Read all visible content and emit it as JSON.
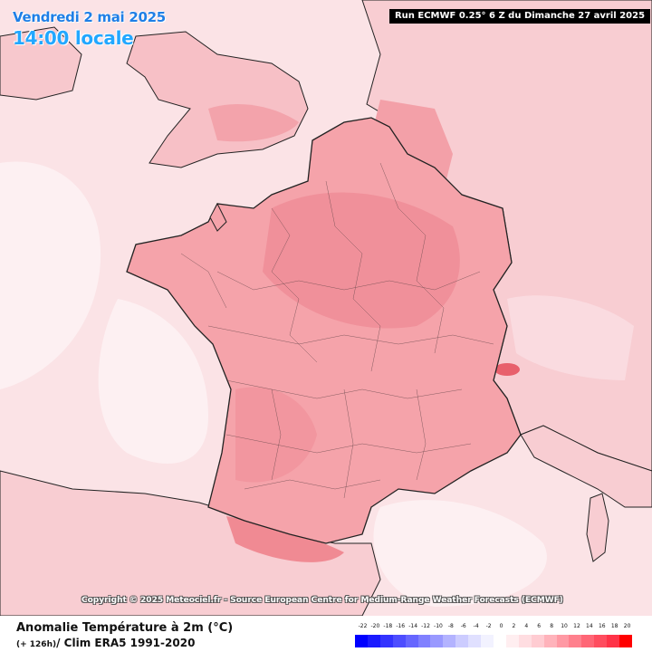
{
  "header": {
    "date": "Vendredi 2 mai 2025",
    "time": "14:00 locale",
    "run": "Run ECMWF 0.25° 6 Z du Dimanche 27 avril 2025"
  },
  "copyright": "Copyright © 2025 Meteociel.fr - Source European Centre for Medium-Range Weather Forecasts (ECMWF)",
  "footer": {
    "title": "Anomalie Température à 2m (°C)",
    "lead": "(+ 126h)",
    "clim": "/ Clim ERA5 1991-2020"
  },
  "legend": {
    "ticks": [
      "-22",
      "-20",
      "-18",
      "-16",
      "-14",
      "-12",
      "-10",
      "-8",
      "-6",
      "-4",
      "-2",
      "0",
      "2",
      "4",
      "6",
      "8",
      "10",
      "12",
      "14",
      "16",
      "18",
      "20"
    ],
    "colors": [
      "#0000ff",
      "#1a1aff",
      "#3333ff",
      "#4d4dff",
      "#6666ff",
      "#8080ff",
      "#9999ff",
      "#b3b3ff",
      "#ccccff",
      "#e0e0ff",
      "#f2f2ff",
      "#ffffff",
      "#ffeef0",
      "#ffdde1",
      "#ffccd2",
      "#ffb3bb",
      "#ff99a4",
      "#ff808d",
      "#ff6676",
      "#ff4d5f",
      "#ff3348",
      "#ff0000"
    ]
  },
  "colors": {
    "sea": "#fbe3e6",
    "land": "#f8cfd4",
    "france": "#f5a3aa",
    "warm": "#f08a93",
    "hot": "#e8606c",
    "cool": "#fdf0f2"
  }
}
